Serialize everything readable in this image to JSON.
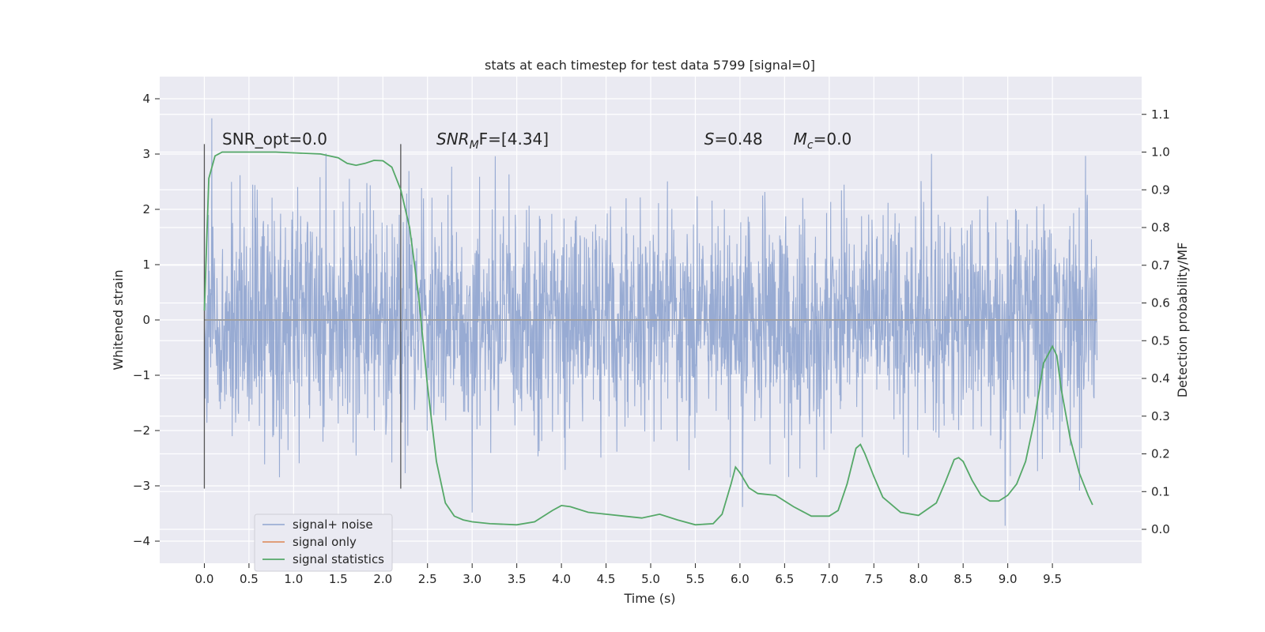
{
  "chart_data": {
    "type": "line",
    "title": "stats at each timestep for test data 5799 [signal=0]",
    "xlabel": "Time (s)",
    "ylabel": "Whitened strain",
    "y2label": "Detection probability/MF",
    "xlim": [
      -0.5,
      10.5
    ],
    "ylim": [
      -4.4,
      4.4
    ],
    "y2lim": [
      -0.09,
      1.2
    ],
    "x_ticks": [
      "0.0",
      "0.5",
      "1.0",
      "1.5",
      "2.0",
      "2.5",
      "3.0",
      "3.5",
      "4.0",
      "4.5",
      "5.0",
      "5.5",
      "6.0",
      "6.5",
      "7.0",
      "7.5",
      "8.0",
      "8.5",
      "9.0",
      "9.5"
    ],
    "y_ticks": [
      "4",
      "3",
      "2",
      "1",
      "0",
      "−1",
      "−2",
      "−3",
      "−4"
    ],
    "y2_ticks": [
      "1.1",
      "1.0",
      "0.9",
      "0.8",
      "0.7",
      "0.6",
      "0.5",
      "0.4",
      "0.3",
      "0.2",
      "0.1",
      "0.0"
    ],
    "grid": true,
    "legend_position": "lower-left",
    "colors": {
      "noise": "#8fa4cf",
      "signal_only": "#dd8452",
      "statistics": "#55a868",
      "background": "#eaeaf2",
      "vline": "#555555"
    },
    "series": [
      {
        "name": "signal+ noise",
        "description_of_values": "dense noise band",
        "band_mean": 0.0,
        "band_sigma": 1.0,
        "range": [
          0.0,
          10.0
        ]
      },
      {
        "name": "signal only",
        "x": [
          0.0,
          10.0
        ],
        "y": [
          0.0,
          0.0
        ]
      },
      {
        "name": "signal statistics",
        "x": [
          0.0,
          0.05,
          0.12,
          0.2,
          0.3,
          0.5,
          0.8,
          1.0,
          1.3,
          1.5,
          1.6,
          1.7,
          1.8,
          1.9,
          2.0,
          2.1,
          2.2,
          2.3,
          2.4,
          2.5,
          2.6,
          2.7,
          2.8,
          2.9,
          3.0,
          3.2,
          3.5,
          3.7,
          3.9,
          4.0,
          4.1,
          4.3,
          4.5,
          4.7,
          4.9,
          5.1,
          5.3,
          5.5,
          5.7,
          5.8,
          5.9,
          5.95,
          6.0,
          6.1,
          6.2,
          6.4,
          6.6,
          6.8,
          7.0,
          7.1,
          7.2,
          7.3,
          7.35,
          7.4,
          7.5,
          7.6,
          7.8,
          8.0,
          8.2,
          8.3,
          8.4,
          8.45,
          8.5,
          8.6,
          8.7,
          8.8,
          8.9,
          9.0,
          9.1,
          9.2,
          9.3,
          9.4,
          9.5,
          9.55,
          9.6,
          9.7,
          9.8,
          9.9,
          9.95
        ],
        "y": [
          0.58,
          0.93,
          0.99,
          1.0,
          1.0,
          1.0,
          1.0,
          0.998,
          0.995,
          0.985,
          0.97,
          0.965,
          0.97,
          0.978,
          0.977,
          0.96,
          0.9,
          0.8,
          0.62,
          0.38,
          0.18,
          0.07,
          0.035,
          0.025,
          0.02,
          0.015,
          0.012,
          0.02,
          0.05,
          0.063,
          0.06,
          0.045,
          0.04,
          0.035,
          0.03,
          0.04,
          0.025,
          0.012,
          0.015,
          0.04,
          0.12,
          0.165,
          0.15,
          0.11,
          0.095,
          0.09,
          0.06,
          0.035,
          0.035,
          0.05,
          0.12,
          0.215,
          0.225,
          0.2,
          0.14,
          0.085,
          0.045,
          0.037,
          0.07,
          0.125,
          0.185,
          0.19,
          0.18,
          0.13,
          0.09,
          0.075,
          0.075,
          0.09,
          0.12,
          0.18,
          0.29,
          0.44,
          0.485,
          0.46,
          0.37,
          0.24,
          0.15,
          0.09,
          0.065
        ]
      }
    ],
    "vlines": [
      0.0,
      2.2
    ],
    "annotations": [
      {
        "text": "SNR_opt=0.0",
        "x": 0.2
      },
      {
        "main": "SNR",
        "sub": "M",
        "rest": "F=[4.34]",
        "x": 2.6
      },
      {
        "main": "S",
        "rest": "=0.48",
        "x": 5.6
      },
      {
        "main": "M",
        "sub": "c",
        "rest": "=0.0",
        "x": 6.6
      }
    ]
  }
}
